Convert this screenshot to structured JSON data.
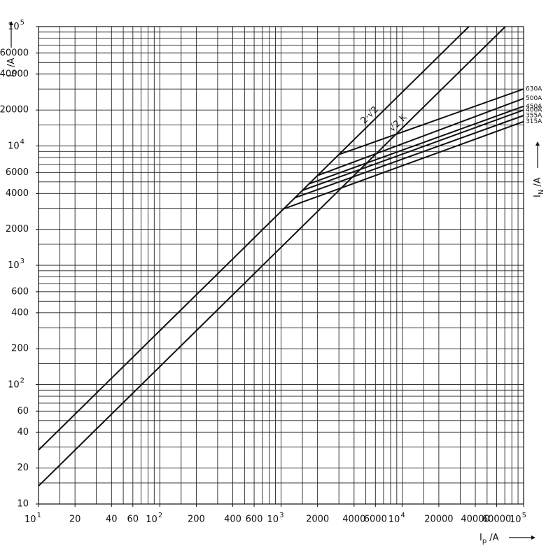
{
  "chart_data": {
    "type": "line",
    "log_x": true,
    "log_y": true,
    "xlim": [
      10,
      100000
    ],
    "ylim": [
      10,
      100000
    ],
    "xticks": [
      {
        "value": 10,
        "label": "10",
        "sup": "1"
      },
      20,
      40,
      60,
      {
        "value": 100,
        "label": "10",
        "sup": "2"
      },
      200,
      400,
      600,
      {
        "value": 1000,
        "label": "10",
        "sup": "3"
      },
      2000,
      4000,
      6000,
      {
        "value": 10000,
        "label": "10",
        "sup": "4"
      },
      20000,
      40000,
      60000,
      {
        "value": 100000,
        "label": "10",
        "sup": "5"
      }
    ],
    "yticks": [
      10,
      20,
      40,
      60,
      {
        "value": 100,
        "label": "10",
        "sup": "2"
      },
      200,
      400,
      600,
      {
        "value": 1000,
        "label": "10",
        "sup": "3"
      },
      2000,
      4000,
      6000,
      {
        "value": 10000,
        "label": "10",
        "sup": "4"
      },
      20000,
      40000,
      60000,
      {
        "value": 100000,
        "label": "10",
        "sup": "5"
      }
    ],
    "grid": true,
    "grid_multiples": [
      1,
      1.5,
      2,
      3,
      4,
      5,
      6,
      7,
      8,
      9
    ],
    "grid_color": "#222",
    "x_label": {
      "main": "I",
      "sub": "p",
      "rest": "/A"
    },
    "y_label": {
      "main": "I",
      "sub": "o",
      "rest": "/A"
    },
    "y2_label": {
      "main": "I",
      "sub": "N",
      "rest": "/A"
    },
    "series": [
      {
        "name": "2·√2",
        "color": "#111",
        "x": [
          10,
          35355
        ],
        "values": [
          28.28,
          100000
        ]
      },
      {
        "name": "√2 K",
        "color": "#111",
        "x": [
          10,
          70711
        ],
        "values": [
          14.14,
          100000
        ]
      },
      {
        "name": "630A",
        "color": "#111",
        "x": [
          3000,
          100000
        ],
        "values": [
          8485,
          30000
        ]
      },
      {
        "name": "500A",
        "color": "#111",
        "x": [
          2000,
          100000
        ],
        "values": [
          5657,
          25000
        ]
      },
      {
        "name": "450A",
        "color": "#111",
        "x": [
          1700,
          100000
        ],
        "values": [
          4808,
          21500
        ]
      },
      {
        "name": "400A",
        "color": "#111",
        "x": [
          1500,
          100000
        ],
        "values": [
          4243,
          20000
        ]
      },
      {
        "name": "355A",
        "color": "#111",
        "x": [
          1300,
          100000
        ],
        "values": [
          3677,
          18000
        ]
      },
      {
        "name": "315A",
        "color": "#111",
        "x": [
          1050,
          100000
        ],
        "values": [
          2970,
          16000
        ]
      }
    ]
  }
}
